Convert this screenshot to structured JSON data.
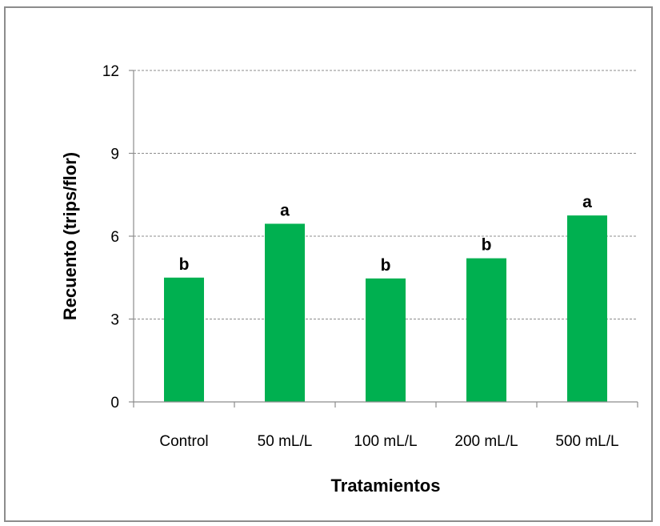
{
  "chart_data": {
    "type": "bar",
    "categories": [
      "Control",
      "50 mL/L",
      "100 mL/L",
      "200 mL/L",
      "500 mL/L"
    ],
    "values": [
      4.5,
      6.45,
      4.47,
      5.2,
      6.75
    ],
    "significance_labels": [
      "b",
      "a",
      "b",
      "b",
      "a"
    ],
    "xlabel": "Tratamientos",
    "ylabel": "Recuento (trips/flor)",
    "ylim": [
      0,
      12
    ],
    "yticks": [
      0,
      3,
      6,
      9,
      12
    ],
    "grid": true,
    "bar_color": "#00b050"
  }
}
